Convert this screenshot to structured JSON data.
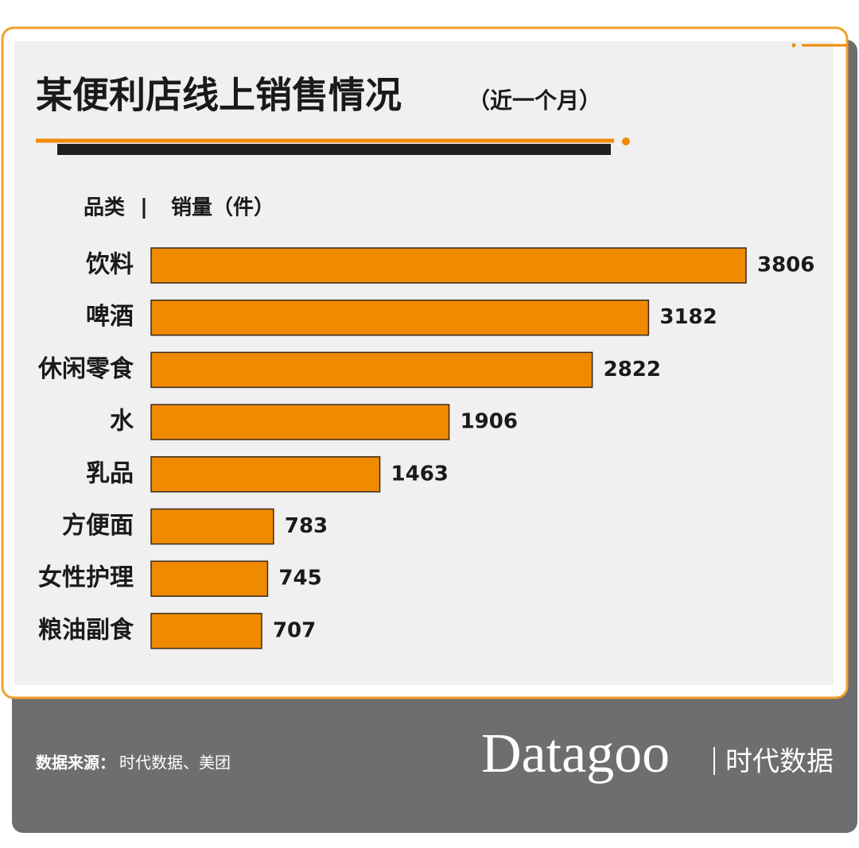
{
  "chart_data": {
    "type": "bar",
    "orientation": "horizontal",
    "title": "某便利店线上销售情况",
    "subtitle": "（近一个月）",
    "category_label": "品类",
    "value_label": "销量（件）",
    "categories": [
      "饮料",
      "啤酒",
      "休闲零食",
      "水",
      "乳品",
      "方便面",
      "女性护理",
      "粮油副食"
    ],
    "values": [
      3806,
      3182,
      2822,
      1906,
      1463,
      783,
      745,
      707
    ],
    "color": "#f08a00",
    "source_label": "数据来源：",
    "source": "时代数据、美团",
    "brand": "Datagoo",
    "brand_cn": "时代数据"
  }
}
